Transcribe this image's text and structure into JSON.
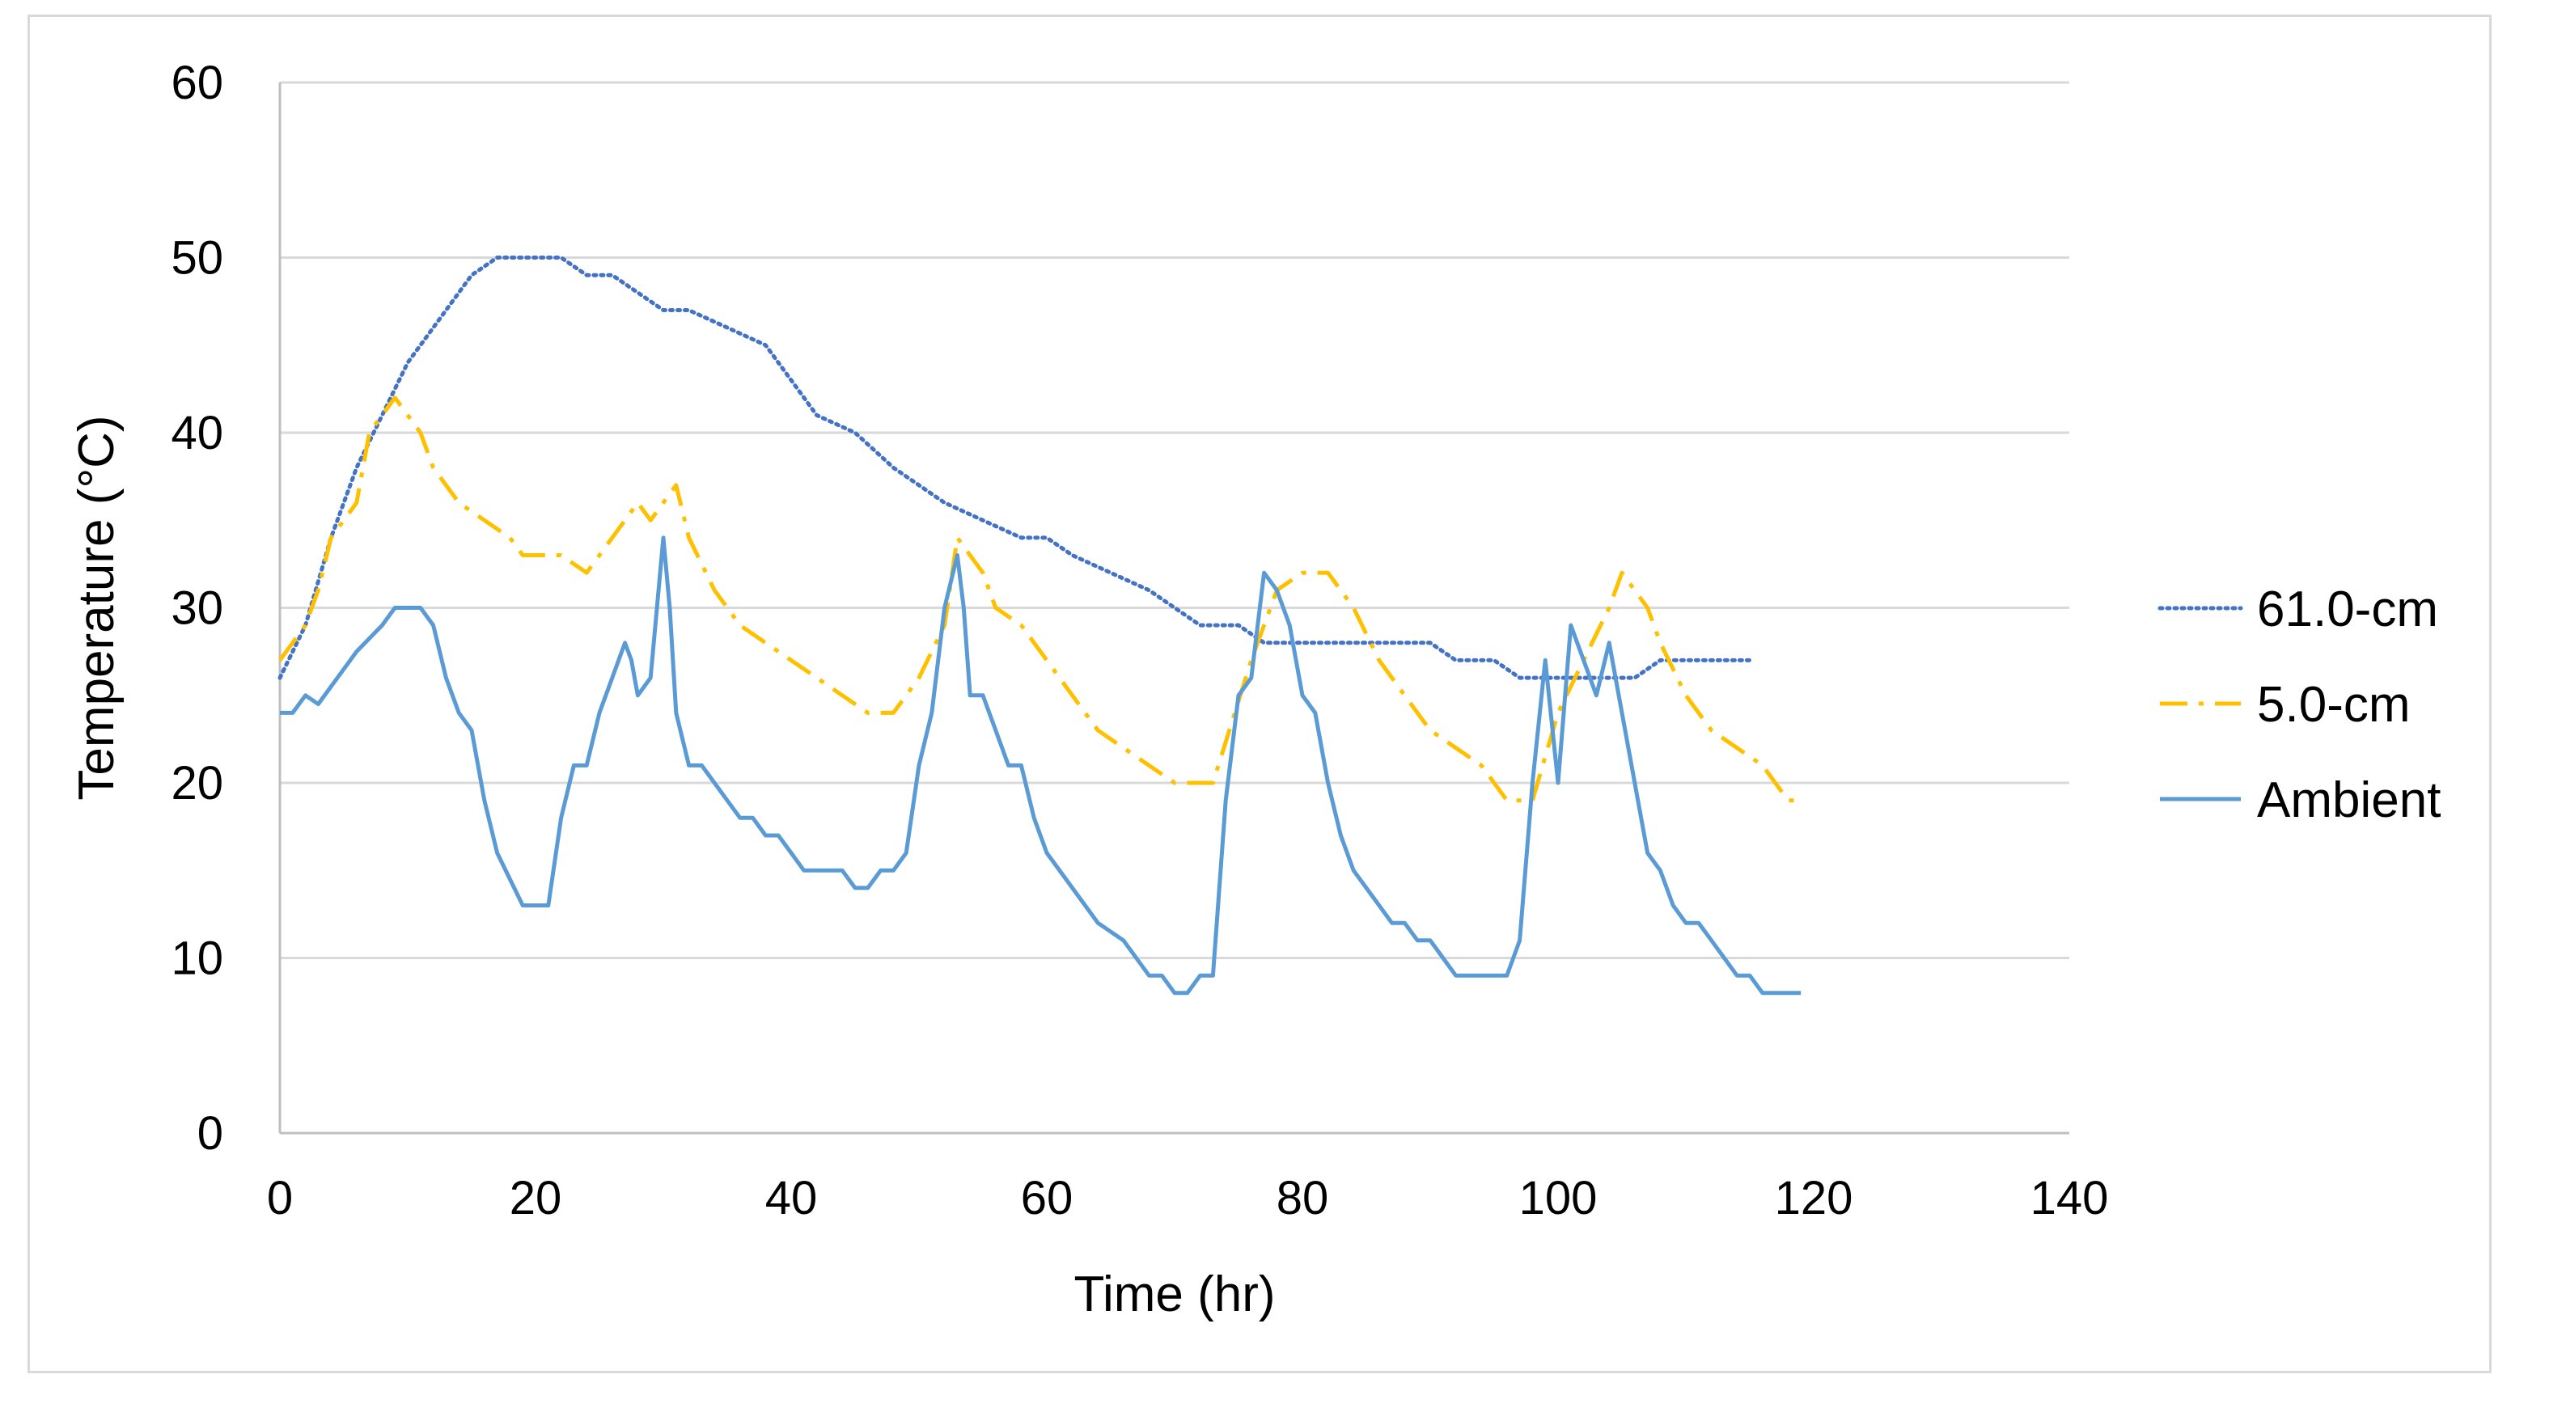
{
  "chart_data": {
    "type": "line",
    "title": "",
    "xlabel": "Time (hr)",
    "ylabel": "Temperature (°C)",
    "xlim": [
      0,
      140
    ],
    "ylim": [
      0,
      60
    ],
    "xticks": [
      0,
      20,
      40,
      60,
      80,
      100,
      120,
      140
    ],
    "yticks": [
      0,
      10,
      20,
      30,
      40,
      50,
      60
    ],
    "xtick_labels": [
      "0",
      "20",
      "40",
      "60",
      "80",
      "100",
      "120",
      "140"
    ],
    "ytick_labels": [
      "0",
      "10",
      "20",
      "30",
      "40",
      "50",
      "60"
    ],
    "grid": "horizontal",
    "legend_position": "right",
    "series": [
      {
        "name": "61.0-cm",
        "style": "dotted",
        "color": "#4472c4",
        "x": [
          0,
          2,
          4,
          6,
          8,
          10,
          12,
          15,
          17,
          20,
          22,
          24,
          26,
          28,
          30,
          32,
          35,
          38,
          40,
          42,
          45,
          48,
          50,
          52,
          55,
          58,
          60,
          62,
          65,
          68,
          70,
          72,
          75,
          77,
          80,
          84,
          88,
          90,
          92,
          95,
          97,
          100,
          103,
          106,
          108,
          111,
          115
        ],
        "values": [
          26,
          29,
          34,
          38,
          41,
          44,
          46,
          49,
          50,
          50,
          50,
          49,
          49,
          48,
          47,
          47,
          46,
          45,
          43,
          41,
          40,
          38,
          37,
          36,
          35,
          34,
          34,
          33,
          32,
          31,
          30,
          29,
          29,
          28,
          28,
          28,
          28,
          28,
          27,
          27,
          26,
          26,
          26,
          26,
          27,
          27,
          27
        ]
      },
      {
        "name": "5.0-cm",
        "style": "dashdot",
        "color": "#ffc000",
        "x": [
          0,
          2,
          3,
          4,
          6,
          7,
          9,
          11,
          12,
          14,
          16,
          18,
          19,
          20,
          22,
          24,
          26,
          27,
          28,
          29,
          30,
          31,
          32,
          34,
          36,
          38,
          40,
          42,
          44,
          46,
          47,
          48,
          50,
          52,
          53,
          55,
          56,
          58,
          60,
          62,
          64,
          66,
          68,
          70,
          73,
          76,
          78,
          80,
          82,
          84,
          86,
          88,
          90,
          92,
          94,
          96,
          98,
          100,
          102,
          104,
          105,
          107,
          108,
          110,
          112,
          114,
          116,
          118,
          119
        ],
        "values": [
          27,
          29,
          31,
          34,
          36,
          40,
          42,
          40,
          38,
          36,
          35,
          34,
          33,
          33,
          33,
          32,
          34,
          35,
          36,
          35,
          36,
          37,
          34,
          31,
          29,
          28,
          27,
          26,
          25,
          24,
          24,
          24,
          26,
          29,
          34,
          32,
          30,
          29,
          27,
          25,
          23,
          22,
          21,
          20,
          20,
          27,
          31,
          32,
          32,
          30,
          27,
          25,
          23,
          22,
          21,
          19,
          19,
          24,
          27,
          30,
          32,
          30,
          28,
          25,
          23,
          22,
          21,
          19,
          19
        ]
      },
      {
        "name": "Ambient",
        "style": "solid",
        "color": "#5b9bd5",
        "x": [
          0,
          1,
          2,
          3,
          4,
          5,
          6,
          8,
          9,
          10,
          11,
          12,
          13,
          14,
          15,
          16,
          17,
          18,
          19,
          20,
          21,
          22,
          23,
          24,
          25,
          26,
          27,
          27.5,
          28,
          29,
          30,
          30.5,
          31,
          32,
          33,
          34,
          35,
          36,
          37,
          38,
          39,
          40,
          41,
          42,
          43,
          44,
          45,
          46,
          47,
          48,
          49,
          50,
          51,
          52,
          53,
          53.5,
          54,
          55,
          56,
          57,
          58,
          59,
          60,
          62,
          64,
          66,
          68,
          69,
          70,
          71,
          72,
          73,
          74,
          75,
          76,
          77,
          78,
          79,
          80,
          81,
          82,
          83,
          84,
          85,
          86,
          87,
          88,
          89,
          90,
          91,
          92,
          93,
          94,
          95,
          96,
          97,
          98,
          99,
          100,
          101,
          102,
          103,
          104,
          105,
          106,
          107,
          108,
          109,
          110,
          111,
          112,
          113,
          114,
          115,
          116,
          117,
          118,
          119
        ],
        "values": [
          24,
          24,
          25,
          24.5,
          25.5,
          26.5,
          27.5,
          29,
          30,
          30,
          30,
          29,
          26,
          24,
          23,
          19,
          16,
          14.5,
          13,
          13,
          13,
          18,
          21,
          21,
          24,
          26,
          28,
          27,
          25,
          26,
          34,
          30,
          24,
          21,
          21,
          20,
          19,
          18,
          18,
          17,
          17,
          16,
          15,
          15,
          15,
          15,
          14,
          14,
          15,
          15,
          16,
          21,
          24,
          30,
          33,
          30,
          25,
          25,
          23,
          21,
          21,
          18,
          16,
          14,
          12,
          11,
          9,
          9,
          8,
          8,
          9,
          9,
          19,
          25,
          26,
          32,
          31,
          29,
          25,
          24,
          20,
          17,
          15,
          14,
          13,
          12,
          12,
          11,
          11,
          10,
          9,
          9,
          9,
          9,
          9,
          11,
          20,
          27,
          20,
          29,
          27,
          25,
          28,
          24,
          20,
          16,
          15,
          13,
          12,
          12,
          11,
          10,
          9,
          9,
          8,
          8,
          8,
          8
        ]
      }
    ]
  }
}
